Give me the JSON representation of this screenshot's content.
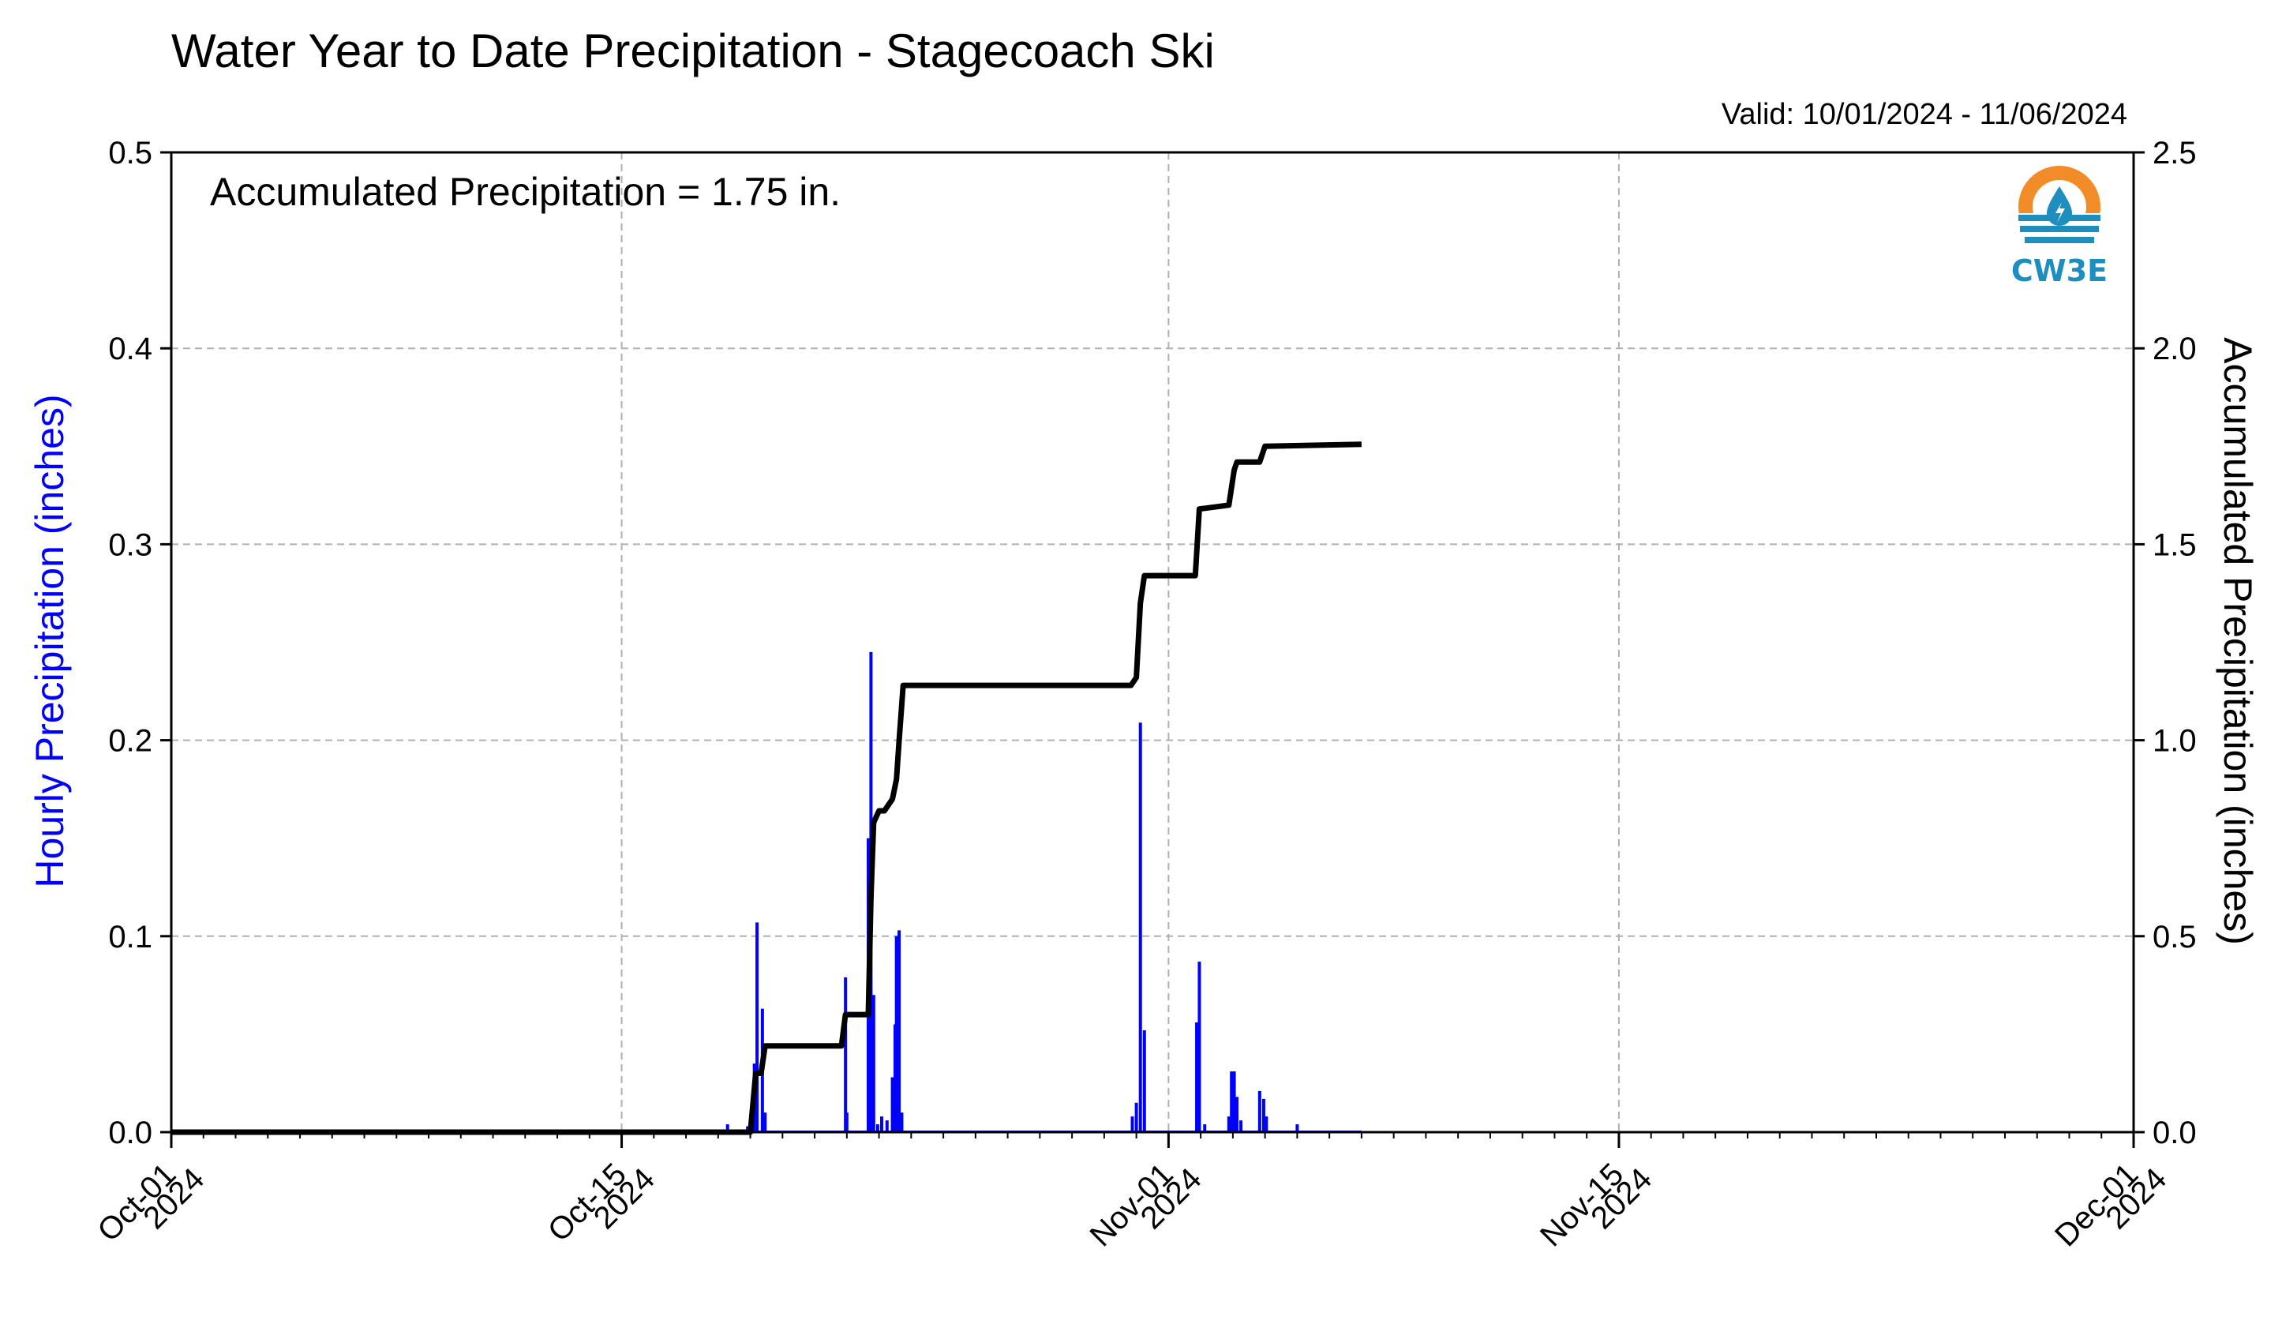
{
  "title": "Water Year to Date Precipitation - Stagecoach Ski",
  "valid": "Valid: 10/01/2024 - 11/06/2024",
  "annotation": "Accumulated Precipitation = 1.75 in.",
  "logo": {
    "text": "CW3E",
    "icon": "water-drop-sun-icon",
    "colors": {
      "orange": "#F28C28",
      "blue": "#1E8EBF"
    }
  },
  "colors": {
    "hourly": "#0000FF",
    "accumulated": "#000000",
    "grid": "#b0b0b0"
  },
  "chart_data": {
    "type": "bar+line",
    "ylabel_left": "Hourly Precipitation (inches)",
    "ylabel_right": "Accumulated Precipitation (inches)",
    "ylim_left": [
      0,
      0.5
    ],
    "ylim_right": [
      0,
      2.5
    ],
    "yticks_left": [
      "0.0",
      "0.1",
      "0.2",
      "0.3",
      "0.4",
      "0.5"
    ],
    "yticks_right": [
      "0.0",
      "0.5",
      "1.0",
      "1.5",
      "2.0",
      "2.5"
    ],
    "xlim": [
      "2024-10-01",
      "2024-12-01"
    ],
    "xticks": [
      {
        "date": "2024-10-01",
        "label1": "Oct-01",
        "label2": "2024"
      },
      {
        "date": "2024-10-15",
        "label1": "Oct-15",
        "label2": "2024"
      },
      {
        "date": "2024-11-01",
        "label1": "Nov-01",
        "label2": "2024"
      },
      {
        "date": "2024-11-15",
        "label1": "Nov-15",
        "label2": "2024"
      },
      {
        "date": "2024-12-01",
        "label1": "Dec-01",
        "label2": "2024"
      }
    ],
    "grid": true,
    "series": [
      {
        "name": "Hourly Precipitation",
        "type": "bar",
        "axis": "left",
        "points": [
          [
            "2024-10-18T07:00",
            0.004
          ],
          [
            "2024-10-18T22:00",
            0.003
          ],
          [
            "2024-10-19T03:00",
            0.035
          ],
          [
            "2024-10-19T05:00",
            0.107
          ],
          [
            "2024-10-19T09:00",
            0.063
          ],
          [
            "2024-10-19T11:00",
            0.01
          ],
          [
            "2024-10-21T23:00",
            0.079
          ],
          [
            "2024-10-22T00:00",
            0.01
          ],
          [
            "2024-10-22T16:00",
            0.15
          ],
          [
            "2024-10-22T18:00",
            0.245
          ],
          [
            "2024-10-22T20:00",
            0.07
          ],
          [
            "2024-10-22T23:00",
            0.004
          ],
          [
            "2024-10-23T02:00",
            0.008
          ],
          [
            "2024-10-23T06:00",
            0.006
          ],
          [
            "2024-10-23T10:00",
            0.028
          ],
          [
            "2024-10-23T12:00",
            0.055
          ],
          [
            "2024-10-23T13:00",
            0.1
          ],
          [
            "2024-10-23T15:00",
            0.103
          ],
          [
            "2024-10-23T17:00",
            0.01
          ],
          [
            "2024-10-30T21:00",
            0.008
          ],
          [
            "2024-10-31T00:00",
            0.015
          ],
          [
            "2024-10-31T03:00",
            0.209
          ],
          [
            "2024-10-31T06:00",
            0.052
          ],
          [
            "2024-11-01T21:00",
            0.056
          ],
          [
            "2024-11-01T23:00",
            0.087
          ],
          [
            "2024-11-02T03:00",
            0.004
          ],
          [
            "2024-11-02T21:00",
            0.008
          ],
          [
            "2024-11-02T23:00",
            0.031
          ],
          [
            "2024-11-03T01:00",
            0.031
          ],
          [
            "2024-11-03T03:00",
            0.018
          ],
          [
            "2024-11-03T06:00",
            0.006
          ],
          [
            "2024-11-03T20:00",
            0.021
          ],
          [
            "2024-11-03T23:00",
            0.017
          ],
          [
            "2024-11-04T01:00",
            0.008
          ],
          [
            "2024-11-05T00:00",
            0.004
          ]
        ]
      },
      {
        "name": "Accumulated Precipitation",
        "type": "line",
        "axis": "right",
        "points": [
          [
            "2024-10-01T00:00",
            0.0
          ],
          [
            "2024-10-19T00:00",
            0.0
          ],
          [
            "2024-10-19T04:00",
            0.15
          ],
          [
            "2024-10-19T08:00",
            0.15
          ],
          [
            "2024-10-19T11:00",
            0.22
          ],
          [
            "2024-10-21T20:00",
            0.22
          ],
          [
            "2024-10-21T23:00",
            0.3
          ],
          [
            "2024-10-22T16:00",
            0.3
          ],
          [
            "2024-10-22T18:00",
            0.6
          ],
          [
            "2024-10-22T20:00",
            0.79
          ],
          [
            "2024-10-23T00:00",
            0.82
          ],
          [
            "2024-10-23T04:00",
            0.82
          ],
          [
            "2024-10-23T10:00",
            0.85
          ],
          [
            "2024-10-23T13:00",
            0.9
          ],
          [
            "2024-10-23T15:00",
            1.0
          ],
          [
            "2024-10-23T18:00",
            1.14
          ],
          [
            "2024-10-30T20:00",
            1.14
          ],
          [
            "2024-10-31T00:00",
            1.16
          ],
          [
            "2024-10-31T03:00",
            1.35
          ],
          [
            "2024-10-31T06:00",
            1.42
          ],
          [
            "2024-11-01T20:00",
            1.42
          ],
          [
            "2024-11-01T23:00",
            1.59
          ],
          [
            "2024-11-02T21:00",
            1.6
          ],
          [
            "2024-11-03T01:00",
            1.69
          ],
          [
            "2024-11-03T03:00",
            1.71
          ],
          [
            "2024-11-03T20:00",
            1.71
          ],
          [
            "2024-11-04T00:00",
            1.75
          ],
          [
            "2024-11-07T00:00",
            1.755
          ]
        ]
      }
    ]
  }
}
